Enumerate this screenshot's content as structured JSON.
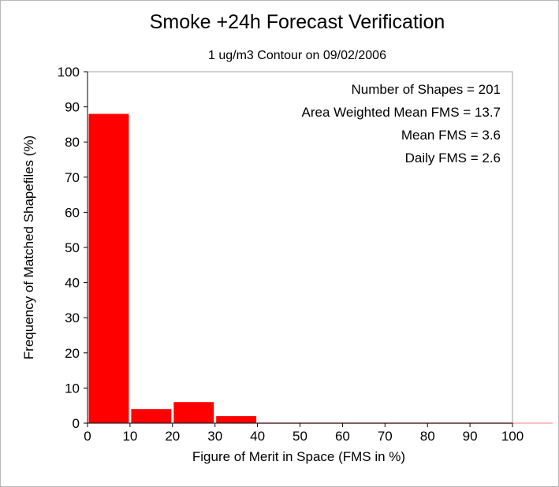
{
  "chart_data": {
    "type": "bar",
    "title": "Smoke +24h Forecast Verification",
    "subtitle": "1 ug/m3 Contour on 09/02/2006",
    "xlabel": "Figure of Merit in Space (FMS in %)",
    "ylabel": "Frequency of Matched Shapefiles (%)",
    "xlim": [
      0,
      100
    ],
    "ylim": [
      0,
      100
    ],
    "x_ticks": [
      0,
      10,
      20,
      30,
      40,
      50,
      60,
      70,
      80,
      90,
      100
    ],
    "y_ticks": [
      0,
      10,
      20,
      30,
      40,
      50,
      60,
      70,
      80,
      90,
      100
    ],
    "bin_edges": [
      0,
      10,
      20,
      30,
      40,
      50,
      60,
      70,
      80,
      90,
      100
    ],
    "values": [
      88,
      4,
      6,
      2,
      0,
      0,
      0,
      0,
      0,
      0
    ],
    "bar_color": "#ff0000",
    "annotations": [
      "Number of Shapes = 201",
      "Area Weighted Mean FMS = 13.7",
      "Mean FMS = 3.6",
      "Daily FMS = 2.6"
    ]
  }
}
